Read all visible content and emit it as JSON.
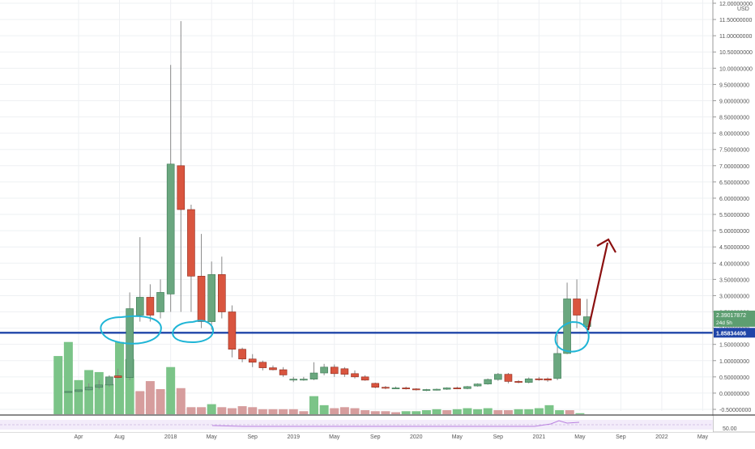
{
  "colors": {
    "up": "#6aa77f",
    "up_border": "#3e7a55",
    "down": "#d9553f",
    "down_border": "#8f2a1d",
    "vol_up": "#7bc488",
    "vol_down": "#d69d9d",
    "grid": "#eef0f3",
    "axis_text": "#555555",
    "support_line": "#1f45a8",
    "price_badge": "#5d9e71",
    "annotation_circle": "#1fb5d6",
    "arrow": "#8b1010",
    "rsi_line": "#b980e0",
    "rsi_band": "#f3ecfa"
  },
  "chart_data": {
    "type": "candlestick",
    "symbol_hint": "monthly candles",
    "currency_label": "USD",
    "y_axis": {
      "min": -0.5,
      "max": 12.0,
      "step": 0.5,
      "ticks": [
        "12.00000000",
        "11.50000000",
        "11.00000000",
        "10.50000000",
        "10.00000000",
        "9.50000000",
        "9.00000000",
        "8.50000000",
        "8.00000000",
        "7.50000000",
        "7.00000000",
        "6.50000000",
        "6.00000000",
        "5.50000000",
        "5.00000000",
        "4.50000000",
        "4.00000000",
        "3.50000000",
        "3.00000000",
        "2.50000000",
        "2.00000000",
        "1.50000000",
        "1.00000000",
        "0.50000000",
        "0.00000000",
        "-0.50000000"
      ]
    },
    "x_axis": {
      "labels": [
        {
          "text": "Apr",
          "month": 4
        },
        {
          "text": "Aug",
          "month": 8
        },
        {
          "text": "2018",
          "month": 13
        },
        {
          "text": "May",
          "month": 17
        },
        {
          "text": "Sep",
          "month": 21
        },
        {
          "text": "2019",
          "month": 25
        },
        {
          "text": "May",
          "month": 29
        },
        {
          "text": "Sep",
          "month": 33
        },
        {
          "text": "2020",
          "month": 37
        },
        {
          "text": "May",
          "month": 41
        },
        {
          "text": "Sep",
          "month": 45
        },
        {
          "text": "2021",
          "month": 49
        },
        {
          "text": "May",
          "month": 53
        },
        {
          "text": "Sep",
          "month": 57
        },
        {
          "text": "2022",
          "month": 61
        },
        {
          "text": "May",
          "month": 65
        }
      ]
    },
    "candles": [
      {
        "m": 3,
        "o": 0.04,
        "h": 0.06,
        "l": 0.02,
        "c": 0.05
      },
      {
        "m": 4,
        "o": 0.05,
        "h": 0.08,
        "l": 0.03,
        "c": 0.1
      },
      {
        "m": 5,
        "o": 0.1,
        "h": 0.3,
        "l": 0.08,
        "c": 0.18
      },
      {
        "m": 6,
        "o": 0.18,
        "h": 0.4,
        "l": 0.12,
        "c": 0.25
      },
      {
        "m": 7,
        "o": 0.25,
        "h": 0.55,
        "l": 0.2,
        "c": 0.5
      },
      {
        "m": 7.85,
        "o": 0.53,
        "h": 0.75,
        "l": 0.45,
        "c": 0.48
      },
      {
        "m": 9,
        "o": 0.48,
        "h": 3.1,
        "l": 0.4,
        "c": 2.6
      },
      {
        "m": 10,
        "o": 2.4,
        "h": 4.8,
        "l": 2.2,
        "c": 2.95
      },
      {
        "m": 11,
        "o": 2.95,
        "h": 3.35,
        "l": 2.2,
        "c": 2.4
      },
      {
        "m": 12,
        "o": 2.5,
        "h": 3.5,
        "l": 2.3,
        "c": 3.1
      },
      {
        "m": 13,
        "o": 3.05,
        "h": 10.1,
        "l": 2.5,
        "c": 7.05
      },
      {
        "m": 14,
        "o": 7.0,
        "h": 11.45,
        "l": 2.5,
        "c": 5.65
      },
      {
        "m": 15,
        "o": 5.65,
        "h": 5.8,
        "l": 2.5,
        "c": 3.6
      },
      {
        "m": 16,
        "o": 3.6,
        "h": 4.9,
        "l": 2.0,
        "c": 2.2
      },
      {
        "m": 17,
        "o": 2.2,
        "h": 4.05,
        "l": 1.95,
        "c": 3.65
      },
      {
        "m": 18,
        "o": 3.65,
        "h": 4.2,
        "l": 2.3,
        "c": 2.5
      },
      {
        "m": 19,
        "o": 2.5,
        "h": 2.7,
        "l": 1.1,
        "c": 1.35
      },
      {
        "m": 20,
        "o": 1.35,
        "h": 1.4,
        "l": 0.95,
        "c": 1.05
      },
      {
        "m": 21,
        "o": 1.05,
        "h": 1.2,
        "l": 0.8,
        "c": 0.95
      },
      {
        "m": 22,
        "o": 0.95,
        "h": 1.0,
        "l": 0.7,
        "c": 0.78
      },
      {
        "m": 23,
        "o": 0.78,
        "h": 0.85,
        "l": 0.7,
        "c": 0.72
      },
      {
        "m": 24,
        "o": 0.72,
        "h": 0.8,
        "l": 0.5,
        "c": 0.56
      },
      {
        "m": 25,
        "o": 0.42,
        "h": 0.5,
        "l": 0.34,
        "c": 0.43
      },
      {
        "m": 26,
        "o": 0.42,
        "h": 0.5,
        "l": 0.38,
        "c": 0.43
      },
      {
        "m": 27,
        "o": 0.43,
        "h": 0.95,
        "l": 0.4,
        "c": 0.62
      },
      {
        "m": 28,
        "o": 0.62,
        "h": 0.9,
        "l": 0.55,
        "c": 0.8
      },
      {
        "m": 29,
        "o": 0.8,
        "h": 0.88,
        "l": 0.5,
        "c": 0.6
      },
      {
        "m": 30,
        "o": 0.75,
        "h": 0.8,
        "l": 0.5,
        "c": 0.58
      },
      {
        "m": 31,
        "o": 0.6,
        "h": 0.7,
        "l": 0.45,
        "c": 0.5
      },
      {
        "m": 32,
        "o": 0.5,
        "h": 0.55,
        "l": 0.38,
        "c": 0.4
      },
      {
        "m": 33,
        "o": 0.3,
        "h": 0.32,
        "l": 0.15,
        "c": 0.18
      },
      {
        "m": 34,
        "o": 0.18,
        "h": 0.22,
        "l": 0.12,
        "c": 0.15
      },
      {
        "m": 35,
        "o": 0.15,
        "h": 0.2,
        "l": 0.13,
        "c": 0.16
      },
      {
        "m": 36,
        "o": 0.16,
        "h": 0.2,
        "l": 0.11,
        "c": 0.13
      },
      {
        "m": 37,
        "o": 0.13,
        "h": 0.15,
        "l": 0.08,
        "c": 0.1
      },
      {
        "m": 38,
        "o": 0.1,
        "h": 0.13,
        "l": 0.06,
        "c": 0.11
      },
      {
        "m": 39,
        "o": 0.11,
        "h": 0.14,
        "l": 0.08,
        "c": 0.12
      },
      {
        "m": 40,
        "o": 0.12,
        "h": 0.18,
        "l": 0.1,
        "c": 0.16
      },
      {
        "m": 41,
        "o": 0.16,
        "h": 0.2,
        "l": 0.13,
        "c": 0.14
      },
      {
        "m": 42,
        "o": 0.14,
        "h": 0.22,
        "l": 0.12,
        "c": 0.2
      },
      {
        "m": 43,
        "o": 0.22,
        "h": 0.3,
        "l": 0.2,
        "c": 0.28
      },
      {
        "m": 44,
        "o": 0.28,
        "h": 0.45,
        "l": 0.26,
        "c": 0.42
      },
      {
        "m": 45,
        "o": 0.42,
        "h": 0.62,
        "l": 0.38,
        "c": 0.58
      },
      {
        "m": 46,
        "o": 0.58,
        "h": 0.62,
        "l": 0.3,
        "c": 0.36
      },
      {
        "m": 47,
        "o": 0.36,
        "h": 0.4,
        "l": 0.3,
        "c": 0.33
      },
      {
        "m": 48,
        "o": 0.33,
        "h": 0.48,
        "l": 0.3,
        "c": 0.44
      },
      {
        "m": 49,
        "o": 0.44,
        "h": 0.5,
        "l": 0.38,
        "c": 0.42
      },
      {
        "m": 49.85,
        "o": 0.44,
        "h": 0.48,
        "l": 0.35,
        "c": 0.4
      },
      {
        "m": 50.8,
        "o": 0.45,
        "h": 1.8,
        "l": 0.4,
        "c": 1.22
      },
      {
        "m": 51.75,
        "o": 1.22,
        "h": 3.4,
        "l": 1.2,
        "c": 2.9
      },
      {
        "m": 52.7,
        "o": 2.9,
        "h": 3.5,
        "l": 2.0,
        "c": 2.4
      },
      {
        "m": 53.7,
        "o": 2.05,
        "h": 2.9,
        "l": 1.9,
        "c": 2.35
      }
    ],
    "volume": [
      {
        "m": 2,
        "v": 0.58,
        "dir": "up"
      },
      {
        "m": 3,
        "v": 0.72,
        "dir": "up"
      },
      {
        "m": 4,
        "v": 0.34,
        "dir": "up"
      },
      {
        "m": 5,
        "v": 0.44,
        "dir": "up"
      },
      {
        "m": 6,
        "v": 0.42,
        "dir": "up"
      },
      {
        "m": 7,
        "v": 0.3,
        "dir": "up"
      },
      {
        "m": 8,
        "v": 0.72,
        "dir": "up"
      },
      {
        "m": 9,
        "v": 0.55,
        "dir": "up"
      },
      {
        "m": 10,
        "v": 0.23,
        "dir": "down"
      },
      {
        "m": 11,
        "v": 0.33,
        "dir": "down"
      },
      {
        "m": 12,
        "v": 0.25,
        "dir": "down"
      },
      {
        "m": 13,
        "v": 0.47,
        "dir": "up"
      },
      {
        "m": 14,
        "v": 0.26,
        "dir": "down"
      },
      {
        "m": 15,
        "v": 0.07,
        "dir": "down"
      },
      {
        "m": 16,
        "v": 0.07,
        "dir": "down"
      },
      {
        "m": 17,
        "v": 0.1,
        "dir": "up"
      },
      {
        "m": 18,
        "v": 0.07,
        "dir": "down"
      },
      {
        "m": 19,
        "v": 0.06,
        "dir": "down"
      },
      {
        "m": 20,
        "v": 0.08,
        "dir": "down"
      },
      {
        "m": 21,
        "v": 0.07,
        "dir": "down"
      },
      {
        "m": 22,
        "v": 0.05,
        "dir": "down"
      },
      {
        "m": 23,
        "v": 0.05,
        "dir": "down"
      },
      {
        "m": 24,
        "v": 0.05,
        "dir": "down"
      },
      {
        "m": 25,
        "v": 0.05,
        "dir": "down"
      },
      {
        "m": 26,
        "v": 0.03,
        "dir": "down"
      },
      {
        "m": 27,
        "v": 0.18,
        "dir": "up"
      },
      {
        "m": 28,
        "v": 0.09,
        "dir": "up"
      },
      {
        "m": 29,
        "v": 0.06,
        "dir": "down"
      },
      {
        "m": 30,
        "v": 0.07,
        "dir": "down"
      },
      {
        "m": 31,
        "v": 0.06,
        "dir": "down"
      },
      {
        "m": 32,
        "v": 0.04,
        "dir": "down"
      },
      {
        "m": 33,
        "v": 0.03,
        "dir": "down"
      },
      {
        "m": 34,
        "v": 0.03,
        "dir": "down"
      },
      {
        "m": 35,
        "v": 0.02,
        "dir": "down"
      },
      {
        "m": 36,
        "v": 0.03,
        "dir": "up"
      },
      {
        "m": 37,
        "v": 0.03,
        "dir": "up"
      },
      {
        "m": 38,
        "v": 0.04,
        "dir": "up"
      },
      {
        "m": 39,
        "v": 0.05,
        "dir": "up"
      },
      {
        "m": 40,
        "v": 0.04,
        "dir": "down"
      },
      {
        "m": 41,
        "v": 0.05,
        "dir": "up"
      },
      {
        "m": 42,
        "v": 0.06,
        "dir": "up"
      },
      {
        "m": 43,
        "v": 0.05,
        "dir": "up"
      },
      {
        "m": 44,
        "v": 0.06,
        "dir": "up"
      },
      {
        "m": 45,
        "v": 0.04,
        "dir": "down"
      },
      {
        "m": 46,
        "v": 0.04,
        "dir": "down"
      },
      {
        "m": 47,
        "v": 0.05,
        "dir": "up"
      },
      {
        "m": 48,
        "v": 0.05,
        "dir": "up"
      },
      {
        "m": 49,
        "v": 0.06,
        "dir": "up"
      },
      {
        "m": 50,
        "v": 0.09,
        "dir": "up"
      },
      {
        "m": 51,
        "v": 0.04,
        "dir": "up"
      },
      {
        "m": 52,
        "v": 0.04,
        "dir": "down"
      },
      {
        "m": 53,
        "v": 0.01,
        "dir": "up"
      }
    ],
    "support_level": 1.85834406,
    "support_label": "1.85834406",
    "current_price_label": "2.39017872",
    "countdown_label": "24d 5h",
    "rsi_value_label": "50.00",
    "annotations": {
      "circles_note": "hand-drawn circles around support touches",
      "arrow_note": "upward projection arrow"
    }
  }
}
